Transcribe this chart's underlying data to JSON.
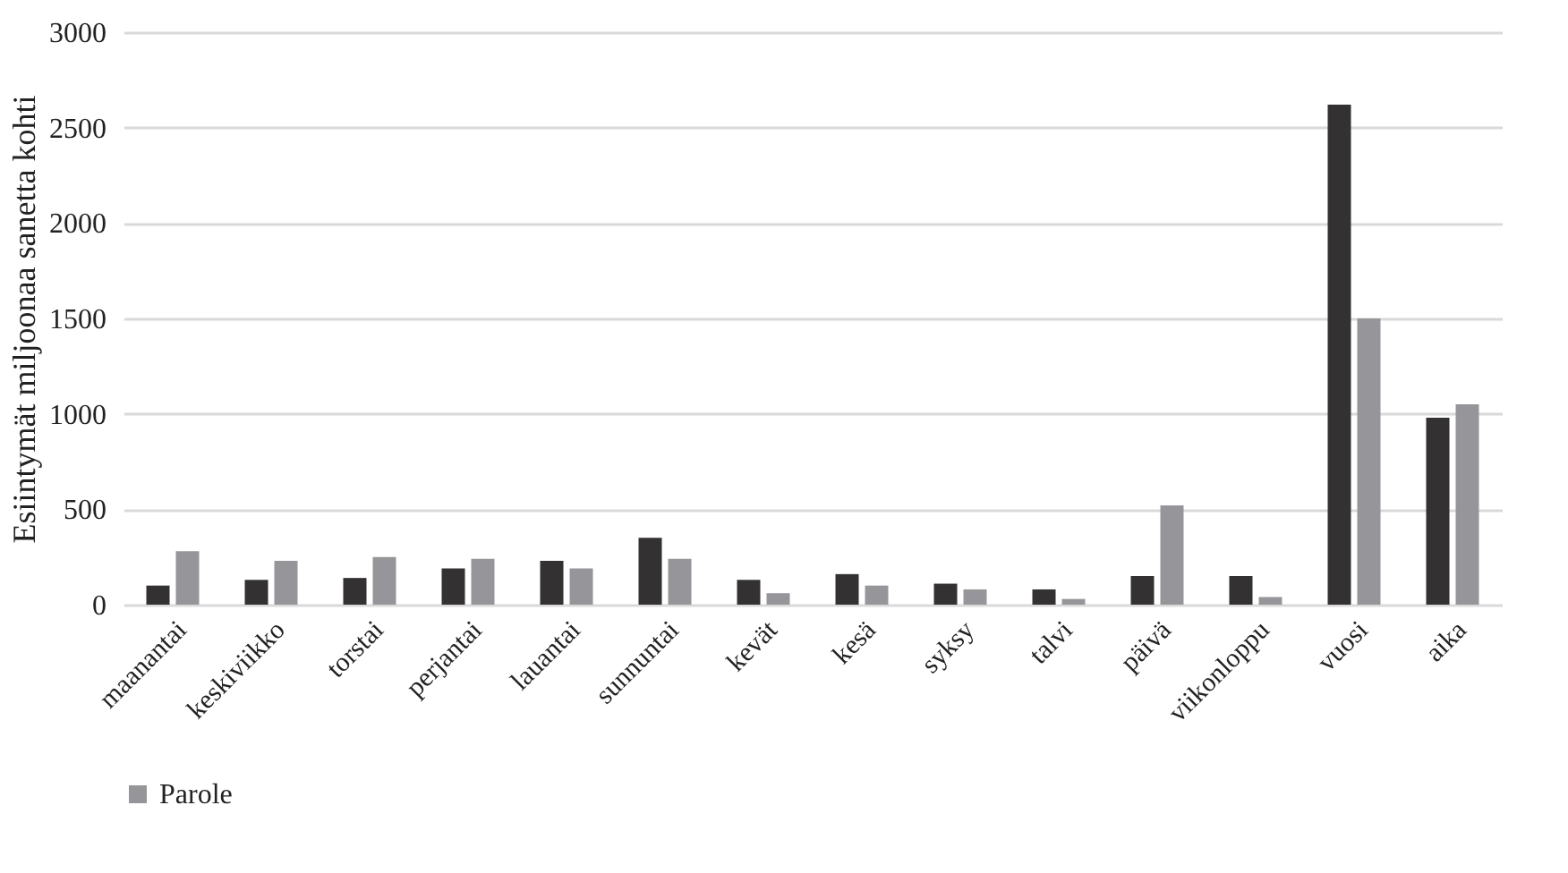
{
  "chart_data": {
    "type": "bar",
    "ylabel": "Esiintymät miljoonaa  sanetta kohti",
    "categories": [
      "maanantai",
      "keskiviikko",
      "torstai",
      "perjantai",
      "lauantai",
      "sunnuntai",
      "kevät",
      "kesä",
      "syksy",
      "talvi",
      "päivä",
      "viikonloppu",
      "vuosi",
      "aika"
    ],
    "series": [
      {
        "color": "#333132",
        "values": [
          100,
          130,
          140,
          190,
          230,
          350,
          130,
          160,
          110,
          80,
          150,
          150,
          2620,
          980
        ]
      },
      {
        "name": "Parole",
        "color": "#96969a",
        "values": [
          280,
          230,
          250,
          240,
          190,
          240,
          60,
          100,
          80,
          30,
          520,
          40,
          1500,
          1050
        ]
      }
    ],
    "ylim": [
      0,
      3000
    ],
    "yticks": [
      0,
      500,
      1000,
      1500,
      2000,
      2500,
      3000
    ],
    "grid": "y",
    "legend": "bottom"
  }
}
